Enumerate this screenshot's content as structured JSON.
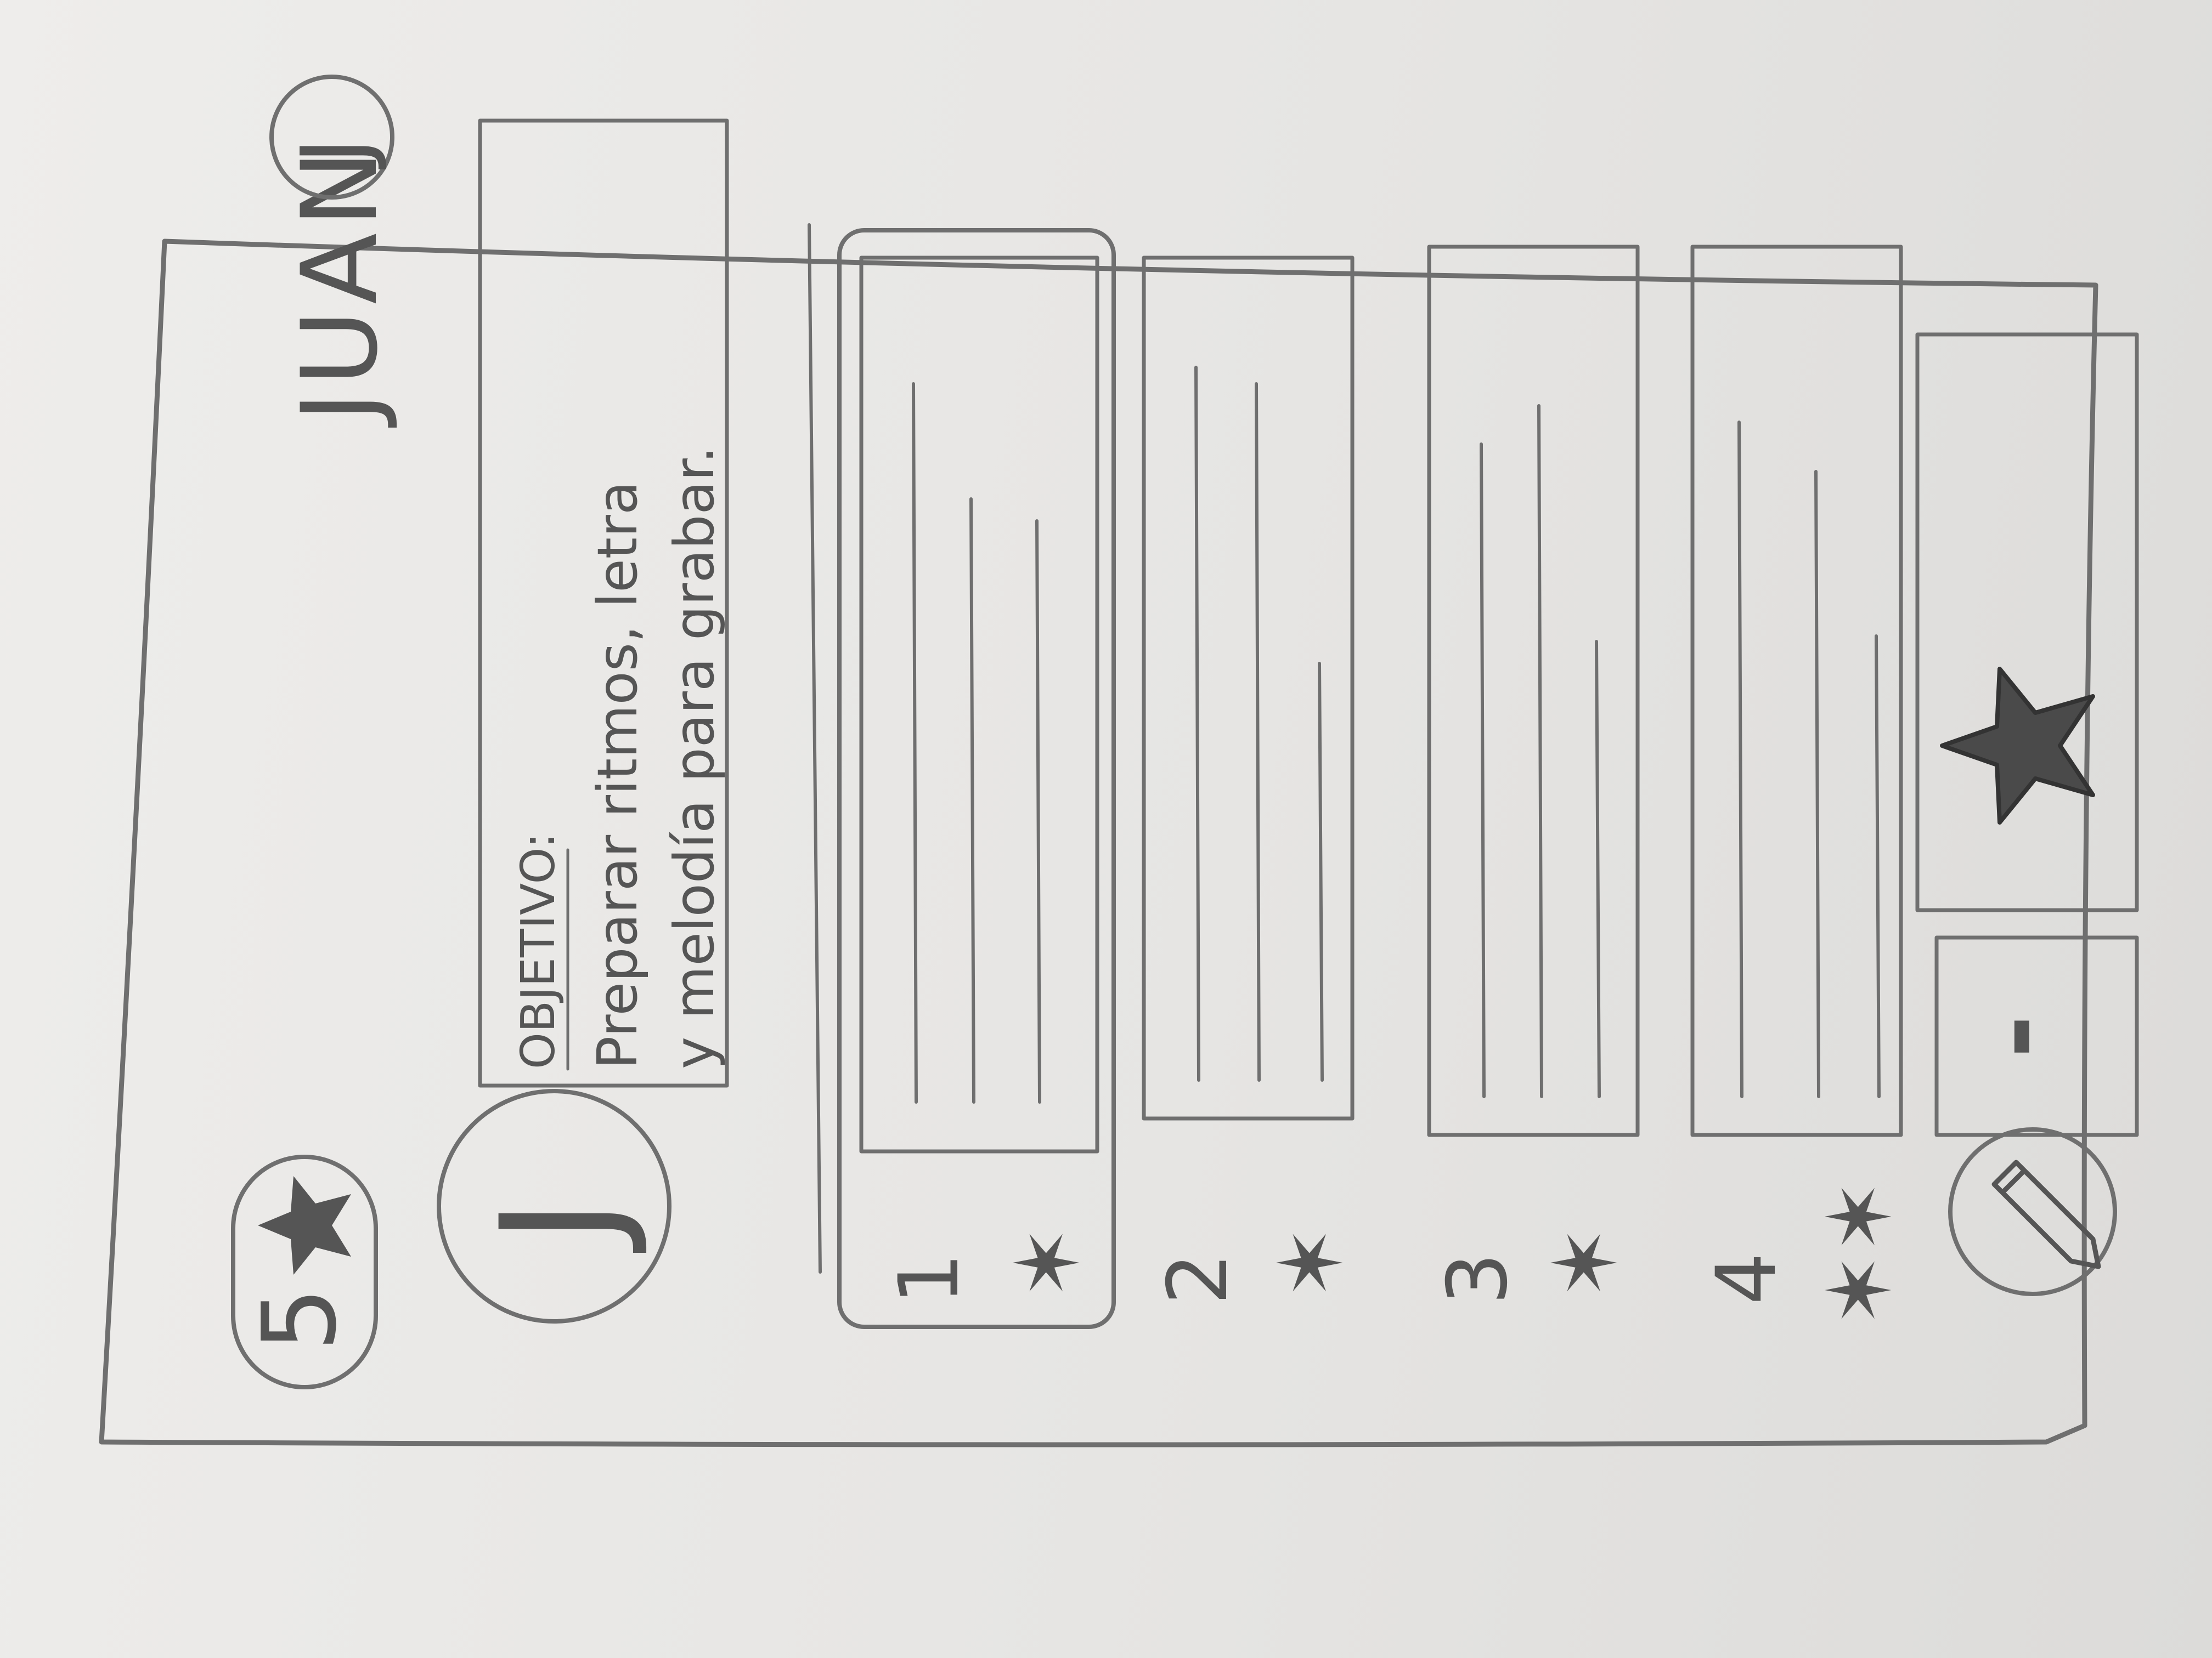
{
  "header": {
    "user_name": "JUAN",
    "user_avatar_initial": "J",
    "star_count": "5",
    "star_icon": "star-icon"
  },
  "objective": {
    "avatar_initial": "J",
    "heading": "OBJETIVO:",
    "line1": "Preparar ritmos, letra",
    "line2": "y melodía para grabar."
  },
  "steps": [
    {
      "number": "1",
      "icon": "star-icon",
      "selected": true
    },
    {
      "number": "2",
      "icon": "star-icon",
      "selected": false
    },
    {
      "number": "3",
      "icon": "star-icon",
      "selected": false
    },
    {
      "number": "4",
      "icon": "star-icon",
      "selected": false
    }
  ],
  "footer": {
    "edit_icon": "pencil-icon",
    "minus_label": "-",
    "favorite_icon": "star-icon"
  }
}
